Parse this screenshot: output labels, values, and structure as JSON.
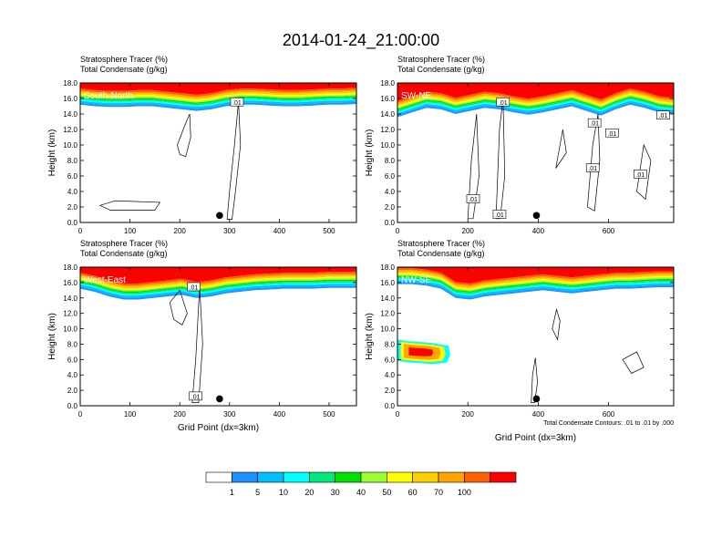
{
  "title": "2014-01-24_21:00:00",
  "chart_data": [
    {
      "type": "heatmap",
      "subtitle_line1": "Stratosphere Tracer   (%)",
      "subtitle_line2": "Total Condensate   (g/kg)",
      "label": "South-North",
      "ylabel": "Height (km)",
      "xlabel": "",
      "xlim": [
        0,
        555
      ],
      "ylim": [
        0,
        18
      ],
      "xticks": [
        "0",
        "100",
        "200",
        "300",
        "400",
        "500"
      ],
      "yticks": [
        "0.0",
        "2.0",
        "4.0",
        "6.0",
        "8.0",
        "10.0",
        "12.0",
        "14.0",
        "16.0",
        "18.0"
      ],
      "contour_labels": [
        ".01"
      ],
      "marker_x": 280,
      "tracer_bottom_km": [
        15.2,
        15.0,
        14.9,
        14.9,
        15.0,
        15.0,
        14.8,
        14.6,
        14.4,
        14.6,
        15.0,
        15.2,
        15.2,
        15.1,
        15.0,
        15.0,
        15.1,
        15.2,
        15.2,
        15.3
      ]
    },
    {
      "type": "heatmap",
      "subtitle_line1": "Stratosphere Tracer   (%)",
      "subtitle_line2": "Total Condensate   (g/kg)",
      "label": "SW-NE",
      "ylabel": "Height (km)",
      "xlabel": "",
      "xlim": [
        0,
        785
      ],
      "ylim": [
        0,
        18
      ],
      "xticks": [
        "0",
        "200",
        "400",
        "600"
      ],
      "yticks": [
        "0.0",
        "2.0",
        "4.0",
        "6.0",
        "8.0",
        "10.0",
        "12.0",
        "14.0",
        "16.0",
        "18.0"
      ],
      "contour_labels": [
        ".01",
        ".01",
        ".01",
        ".01",
        ".01",
        ".01",
        ".01",
        ".01"
      ],
      "marker_x": 395,
      "tracer_bottom_km": [
        13.6,
        14.2,
        14.8,
        14.6,
        14.0,
        14.4,
        14.8,
        14.6,
        14.2,
        13.9,
        14.2,
        14.6,
        15.0,
        14.4,
        13.8,
        14.6,
        15.2,
        14.8,
        14.2,
        14.0
      ]
    },
    {
      "type": "heatmap",
      "subtitle_line1": "Stratosphere Tracer   (%)",
      "subtitle_line2": "Total Condensate   (g/kg)",
      "label": "West-East",
      "ylabel": "Height (km)",
      "xlabel": "Grid Point (dx=3km)",
      "xlim": [
        0,
        555
      ],
      "ylim": [
        0,
        18
      ],
      "xticks": [
        "0",
        "100",
        "200",
        "300",
        "400",
        "500"
      ],
      "yticks": [
        "0.0",
        "2.0",
        "4.0",
        "6.0",
        "8.0",
        "10.0",
        "12.0",
        "14.0",
        "16.0",
        "18.0"
      ],
      "contour_labels": [
        ".01",
        ".01"
      ],
      "marker_x": 280,
      "tracer_bottom_km": [
        15.2,
        14.8,
        14.2,
        13.8,
        13.8,
        14.0,
        14.2,
        14.4,
        14.0,
        14.2,
        14.6,
        14.8,
        15.0,
        15.1,
        15.2,
        15.2,
        15.2,
        15.3,
        15.3,
        15.3
      ]
    },
    {
      "type": "heatmap",
      "subtitle_line1": "Stratosphere Tracer   (%)",
      "subtitle_line2": "Total Condensate   (g/kg)",
      "label": "NW-SE",
      "ylabel": "Height (km)",
      "xlabel": "Grid Point (dx=3km)",
      "xlim": [
        0,
        785
      ],
      "ylim": [
        0,
        18
      ],
      "xticks": [
        "0",
        "200",
        "400",
        "600"
      ],
      "yticks": [
        "0.0",
        "2.0",
        "4.0",
        "6.0",
        "8.0",
        "10.0",
        "12.0",
        "14.0",
        "16.0",
        "18.0"
      ],
      "contour_labels": [],
      "marker_x": 395,
      "tracer_bottom_km": [
        15.8,
        15.8,
        15.6,
        15.2,
        14.0,
        13.8,
        14.2,
        14.4,
        14.6,
        14.8,
        15.0,
        14.8,
        14.6,
        14.8,
        15.0,
        15.2,
        15.2,
        15.3,
        15.4,
        15.4
      ],
      "footnote": "Total Condensate Contours: .01 to .01 by .000"
    }
  ],
  "colorbar": {
    "labels": [
      "1",
      "5",
      "10",
      "20",
      "30",
      "40",
      "50",
      "60",
      "70",
      "100"
    ],
    "colors": [
      "#ffffff",
      "#1e90ff",
      "#00bfff",
      "#00ffff",
      "#00e87c",
      "#00e000",
      "#9aff32",
      "#ffff00",
      "#ffd000",
      "#ffa500",
      "#ff6000",
      "#ff0000"
    ]
  }
}
